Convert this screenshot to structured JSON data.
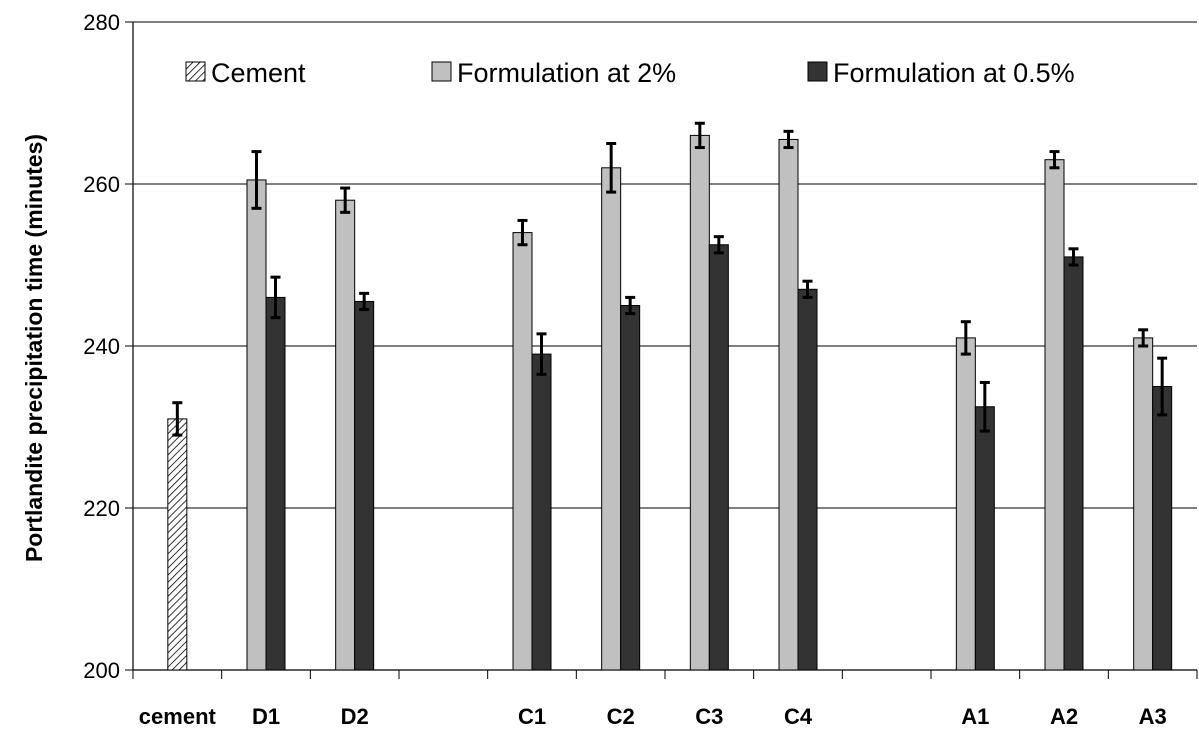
{
  "chart_data": {
    "type": "bar",
    "ylabel": "Portlandite precipitation time (minutes)",
    "xlabel": "",
    "ylim": [
      200,
      280
    ],
    "yticks": [
      200,
      220,
      240,
      260,
      280
    ],
    "grid": true,
    "legend_position": "top",
    "slots": [
      "cement",
      "D1",
      "D2",
      "",
      "C1",
      "C2",
      "C3",
      "C4",
      "",
      "A1",
      "A2",
      "A3"
    ],
    "series": [
      {
        "name": "Cement",
        "key": "cement",
        "color": "#ffffff",
        "pattern": "hatch",
        "values": [
          231,
          null,
          null,
          null,
          null,
          null,
          null,
          null,
          null,
          null,
          null,
          null
        ],
        "errors": [
          2,
          null,
          null,
          null,
          null,
          null,
          null,
          null,
          null,
          null,
          null,
          null
        ]
      },
      {
        "name": "Formulation at 2%",
        "key": "f2",
        "color": "#c0c0c0",
        "values": [
          null,
          260.5,
          258,
          null,
          254,
          262,
          266,
          265.5,
          null,
          241,
          263,
          241
        ],
        "errors": [
          null,
          3.5,
          1.5,
          null,
          1.5,
          3,
          1.5,
          1,
          null,
          2,
          1,
          1
        ]
      },
      {
        "name": "Formulation at 0.5%",
        "key": "f05",
        "color": "#333333",
        "values": [
          null,
          246,
          245.5,
          null,
          239,
          245,
          252.5,
          247,
          null,
          232.5,
          251,
          235
        ],
        "errors": [
          null,
          2.5,
          1,
          null,
          2.5,
          1,
          1,
          1,
          null,
          3,
          1,
          3.5
        ]
      }
    ]
  }
}
